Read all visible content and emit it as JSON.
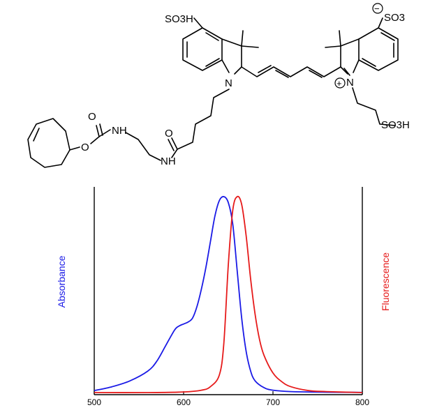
{
  "molecule": {
    "labels": {
      "so3h_top": "SO3H",
      "so3_right": "SO3",
      "minus": "−",
      "plus": "+",
      "n_left": "N",
      "n_right": "N",
      "so3h_chain": "SO3H",
      "nh_upper": "NH",
      "nh_lower": "NH",
      "o_carbonyl1": "O",
      "o_ester": "O",
      "o_carbonyl2": "O"
    }
  },
  "colors": {
    "absorbance": "#1a1ae6",
    "fluorescence": "#e61a1a",
    "axis": "#000000"
  },
  "chart_data": {
    "type": "line",
    "xlim": [
      500,
      800
    ],
    "ylim": [
      0,
      1.0
    ],
    "x_ticks": [
      500,
      600,
      700,
      800
    ],
    "ylabel_left": "Absorbance",
    "ylabel_right": "Fluorescence",
    "series": [
      {
        "name": "Absorbance",
        "color": "#1a1ae6",
        "x": [
          500,
          520,
          540,
          560,
          570,
          580,
          590,
          595,
          600,
          605,
          610,
          615,
          620,
          625,
          630,
          635,
          640,
          645,
          650,
          655,
          660,
          665,
          670,
          675,
          680,
          690,
          700,
          720,
          760,
          800
        ],
        "y": [
          0.01,
          0.03,
          0.06,
          0.11,
          0.16,
          0.24,
          0.32,
          0.34,
          0.35,
          0.36,
          0.38,
          0.44,
          0.53,
          0.64,
          0.77,
          0.9,
          0.98,
          1.0,
          0.97,
          0.86,
          0.62,
          0.38,
          0.21,
          0.11,
          0.06,
          0.025,
          0.012,
          0.005,
          0.002,
          0.001
        ]
      },
      {
        "name": "Fluorescence",
        "color": "#e61a1a",
        "x": [
          500,
          560,
          600,
          620,
          630,
          640,
          645,
          650,
          655,
          660,
          665,
          670,
          675,
          680,
          685,
          690,
          700,
          710,
          720,
          740,
          760,
          800
        ],
        "y": [
          0.0,
          0.0,
          0.003,
          0.012,
          0.03,
          0.09,
          0.25,
          0.65,
          0.93,
          1.0,
          0.96,
          0.8,
          0.58,
          0.4,
          0.27,
          0.19,
          0.1,
          0.055,
          0.03,
          0.01,
          0.005,
          0.0
        ]
      }
    ]
  }
}
